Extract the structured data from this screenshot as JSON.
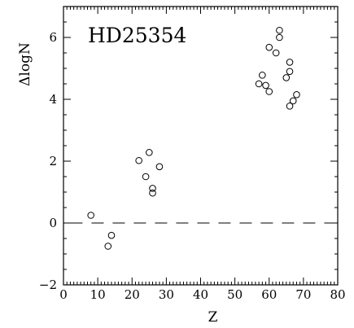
{
  "chart_data": {
    "type": "scatter",
    "annotation": "HD25354",
    "xlabel": "Z",
    "ylabel": "ΔlogN",
    "xlim": [
      0,
      80
    ],
    "ylim": [
      -2,
      7
    ],
    "xticks": [
      0,
      10,
      20,
      30,
      40,
      50,
      60,
      70,
      80
    ],
    "xtick_labels": [
      "0",
      "10",
      "20",
      "30",
      "40",
      "50",
      "60",
      "70",
      "80"
    ],
    "yticks": [
      -2,
      0,
      2,
      4,
      6
    ],
    "ytick_labels": [
      "−2",
      "0",
      "2",
      "4",
      "6"
    ],
    "grid": false,
    "legend": "none",
    "reference_line": {
      "y": 0,
      "x_range": [
        2,
        80
      ],
      "style": "dashed"
    },
    "marker": "open-circle",
    "series": [
      {
        "points": [
          {
            "x": 8,
            "y": 0.25
          },
          {
            "x": 13,
            "y": -0.75
          },
          {
            "x": 14,
            "y": -0.4
          },
          {
            "x": 22,
            "y": 2.02
          },
          {
            "x": 24,
            "y": 1.5
          },
          {
            "x": 25,
            "y": 2.28
          },
          {
            "x": 26,
            "y": 1.12
          },
          {
            "x": 26,
            "y": 0.97
          },
          {
            "x": 28,
            "y": 1.82
          },
          {
            "x": 57,
            "y": 4.5
          },
          {
            "x": 58,
            "y": 4.78
          },
          {
            "x": 59,
            "y": 4.45
          },
          {
            "x": 60,
            "y": 4.25
          },
          {
            "x": 60,
            "y": 5.68
          },
          {
            "x": 62,
            "y": 5.5
          },
          {
            "x": 63,
            "y": 6.23
          },
          {
            "x": 63,
            "y": 6.0
          },
          {
            "x": 65,
            "y": 4.7
          },
          {
            "x": 66,
            "y": 5.2
          },
          {
            "x": 66,
            "y": 4.9
          },
          {
            "x": 66,
            "y": 3.78
          },
          {
            "x": 67,
            "y": 3.95
          },
          {
            "x": 68,
            "y": 4.15
          }
        ]
      }
    ]
  }
}
